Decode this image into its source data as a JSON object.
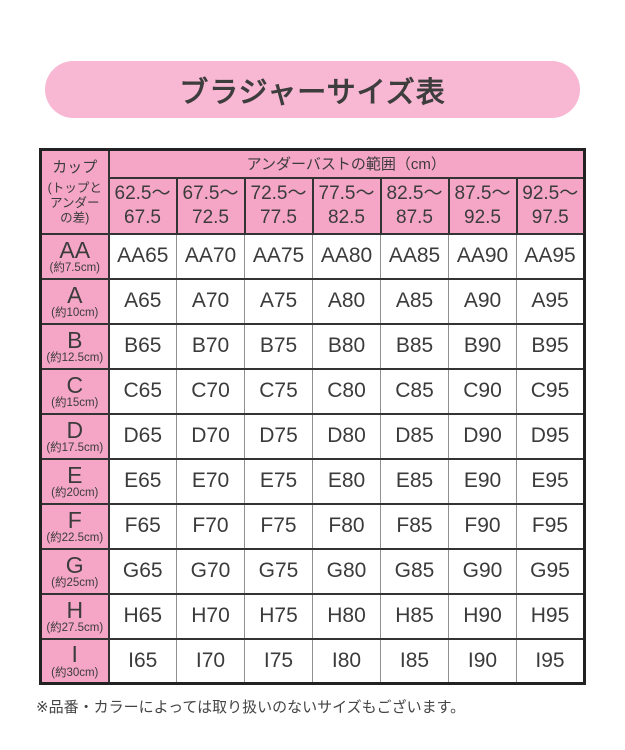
{
  "title": "ブラジャーサイズ表",
  "footnote": "※品番・カラーによっては取り扱いのないサイズもございます。",
  "colors": {
    "pill_pink": "#f8b7d2",
    "table_pink": "#f5a6c7",
    "border_dark": "#333333",
    "border_light": "#909090",
    "text": "#3b3b3b"
  },
  "table": {
    "corner": {
      "title": "カップ",
      "subtitle_lines": [
        "(トップと",
        "アンダー",
        "の差)"
      ]
    },
    "underbust_header": "アンダーバストの範囲（cm）",
    "ranges": [
      {
        "from": "62.5〜",
        "to": "67.5"
      },
      {
        "from": "67.5〜",
        "to": "72.5"
      },
      {
        "from": "72.5〜",
        "to": "77.5"
      },
      {
        "from": "77.5〜",
        "to": "82.5"
      },
      {
        "from": "82.5〜",
        "to": "87.5"
      },
      {
        "from": "87.5〜",
        "to": "92.5"
      },
      {
        "from": "92.5〜",
        "to": "97.5"
      }
    ],
    "rows": [
      {
        "cup": "AA",
        "diff": "(約7.5cm)",
        "sizes": [
          "AA65",
          "AA70",
          "AA75",
          "AA80",
          "AA85",
          "AA90",
          "AA95"
        ]
      },
      {
        "cup": "A",
        "diff": "(約10cm)",
        "sizes": [
          "A65",
          "A70",
          "A75",
          "A80",
          "A85",
          "A90",
          "A95"
        ]
      },
      {
        "cup": "B",
        "diff": "(約12.5cm)",
        "sizes": [
          "B65",
          "B70",
          "B75",
          "B80",
          "B85",
          "B90",
          "B95"
        ]
      },
      {
        "cup": "C",
        "diff": "(約15cm)",
        "sizes": [
          "C65",
          "C70",
          "C75",
          "C80",
          "C85",
          "C90",
          "C95"
        ]
      },
      {
        "cup": "D",
        "diff": "(約17.5cm)",
        "sizes": [
          "D65",
          "D70",
          "D75",
          "D80",
          "D85",
          "D90",
          "D95"
        ]
      },
      {
        "cup": "E",
        "diff": "(約20cm)",
        "sizes": [
          "E65",
          "E70",
          "E75",
          "E80",
          "E85",
          "E90",
          "E95"
        ]
      },
      {
        "cup": "F",
        "diff": "(約22.5cm)",
        "sizes": [
          "F65",
          "F70",
          "F75",
          "F80",
          "F85",
          "F90",
          "F95"
        ]
      },
      {
        "cup": "G",
        "diff": "(約25cm)",
        "sizes": [
          "G65",
          "G70",
          "G75",
          "G80",
          "G85",
          "G90",
          "G95"
        ]
      },
      {
        "cup": "H",
        "diff": "(約27.5cm)",
        "sizes": [
          "H65",
          "H70",
          "H75",
          "H80",
          "H85",
          "H90",
          "H95"
        ]
      },
      {
        "cup": "I",
        "diff": "(約30cm)",
        "sizes": [
          "I65",
          "I70",
          "I75",
          "I80",
          "I85",
          "I90",
          "I95"
        ]
      }
    ]
  }
}
